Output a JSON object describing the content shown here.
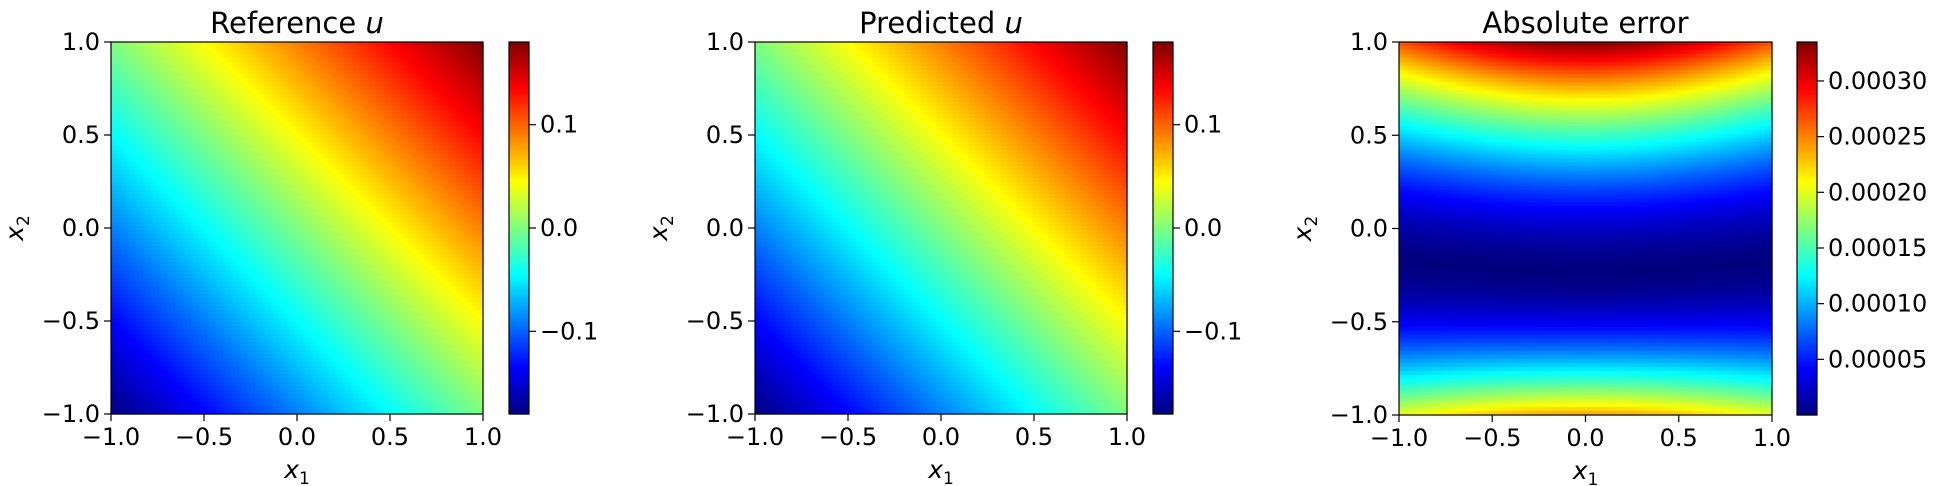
{
  "colormap": "jet",
  "colormap_stops": [
    "#00007f",
    "#0000ff",
    "#007fff",
    "#00ffff",
    "#7fff7f",
    "#ffff00",
    "#ff7f00",
    "#ff0000",
    "#7f0000"
  ],
  "chart_data": [
    {
      "type": "heatmap",
      "title": "Reference ",
      "title_var": "u",
      "xlabel": "x",
      "xlabel_sub": "1",
      "ylabel": "x",
      "ylabel_sub": "2",
      "xlim": [
        -1.0,
        1.0
      ],
      "ylim": [
        -1.0,
        1.0
      ],
      "xticks": [
        "−1.0",
        "−0.5",
        "0.0",
        "0.5",
        "1.0"
      ],
      "yticks": [
        "−1.0",
        "−0.5",
        "0.0",
        "0.5",
        "1.0"
      ],
      "field": "0.09*(x1+x2)",
      "value_range": [
        -0.18,
        0.18
      ],
      "colorbar_ticks": [
        {
          "value": 0.1,
          "label": "0.1"
        },
        {
          "value": 0.0,
          "label": "0.0"
        },
        {
          "value": -0.1,
          "label": "−0.1"
        }
      ]
    },
    {
      "type": "heatmap",
      "title": "Predicted ",
      "title_var": "u",
      "xlabel": "x",
      "xlabel_sub": "1",
      "ylabel": "x",
      "ylabel_sub": "2",
      "xlim": [
        -1.0,
        1.0
      ],
      "ylim": [
        -1.0,
        1.0
      ],
      "xticks": [
        "−1.0",
        "−0.5",
        "0.0",
        "0.5",
        "1.0"
      ],
      "yticks": [
        "−1.0",
        "−0.5",
        "0.0",
        "0.5",
        "1.0"
      ],
      "field": "0.09*(x1+x2)",
      "value_range": [
        -0.18,
        0.18
      ],
      "colorbar_ticks": [
        {
          "value": 0.1,
          "label": "0.1"
        },
        {
          "value": 0.0,
          "label": "0.0"
        },
        {
          "value": -0.1,
          "label": "−0.1"
        }
      ]
    },
    {
      "type": "heatmap",
      "title": "Absolute error",
      "title_var": "",
      "xlabel": "x",
      "xlabel_sub": "1",
      "ylabel": "x",
      "ylabel_sub": "2",
      "xlim": [
        -1.0,
        1.0
      ],
      "ylim": [
        -1.0,
        1.0
      ],
      "xticks": [
        "−1.0",
        "−0.5",
        "0.0",
        "0.5",
        "1.0"
      ],
      "yticks": [
        "−1.0",
        "−0.5",
        "0.0",
        "0.5",
        "1.0"
      ],
      "field": "abs(sin(pi*(x2+0.2)/2.4)) with x1-dependent center shift",
      "value_range": [
        0.0,
        0.000335
      ],
      "colorbar_ticks": [
        {
          "value": 0.0003,
          "label": "0.00030"
        },
        {
          "value": 0.00025,
          "label": "0.00025"
        },
        {
          "value": 0.0002,
          "label": "0.00020"
        },
        {
          "value": 0.00015,
          "label": "0.00015"
        },
        {
          "value": 0.0001,
          "label": "0.00010"
        },
        {
          "value": 5e-05,
          "label": "0.00005"
        }
      ]
    }
  ]
}
